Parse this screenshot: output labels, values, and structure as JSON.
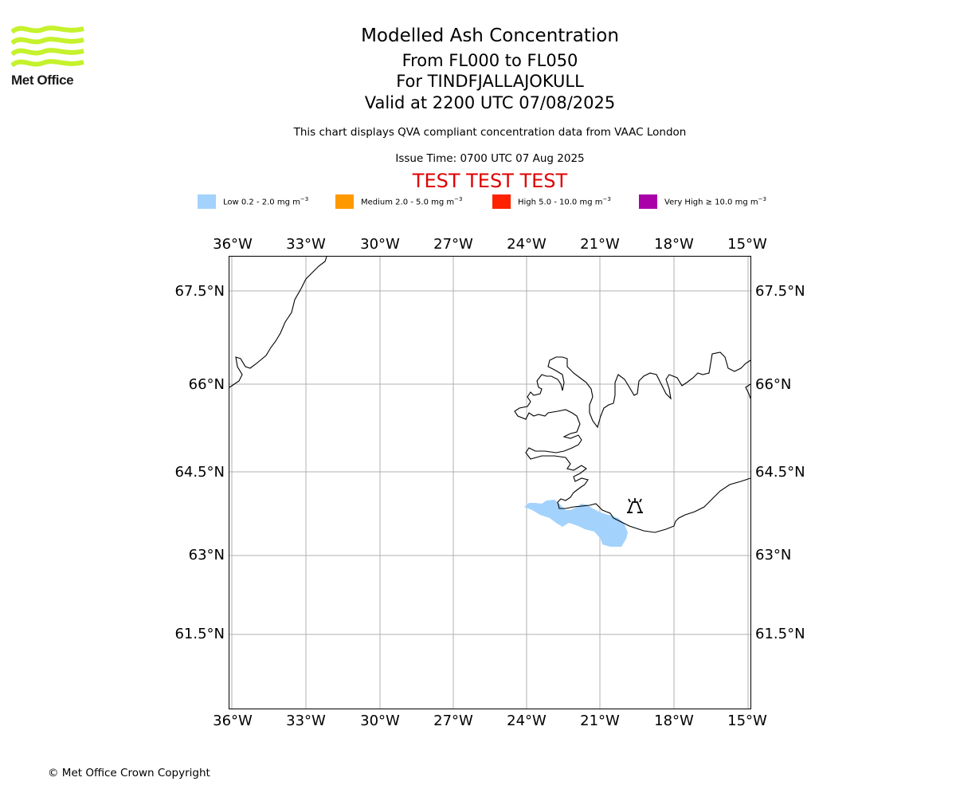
{
  "logo": {
    "text": "Met Office",
    "color": "#c5f22c"
  },
  "header": {
    "title": "Modelled Ash Concentration",
    "levels": "From FL000 to FL050",
    "volcano": "For TINDFJALLAJOKULL",
    "valid": "Valid at 2200 UTC 07/08/2025",
    "description": "This chart displays QVA compliant concentration data from VAAC London",
    "issue_time": "Issue Time: 0700 UTC 07 Aug 2025",
    "test_banner": "TEST TEST TEST"
  },
  "legend": [
    {
      "label": "Low 0.2 - 2.0 mg m",
      "unit_exp": "−3",
      "color": "#a3d2fc"
    },
    {
      "label": "Medium 2.0 - 5.0 mg m",
      "unit_exp": "−3",
      "color": "#ff9900"
    },
    {
      "label": "High 5.0 - 10.0 mg m",
      "unit_exp": "−3",
      "color": "#ff2200"
    },
    {
      "label": "Very High  ≥  10.0 mg m",
      "unit_exp": "−3",
      "color": "#aa00aa"
    }
  ],
  "map": {
    "lon_ticks": [
      "36°W",
      "33°W",
      "30°W",
      "27°W",
      "24°W",
      "21°W",
      "18°W",
      "15°W"
    ],
    "lat_ticks": [
      "67.5°N",
      "66°N",
      "64.5°N",
      "63°N",
      "61.5°N"
    ],
    "volcano_icon": "volcano-icon",
    "ash_level": "Low"
  },
  "footer": {
    "copyright": "© Met Office Crown Copyright"
  }
}
